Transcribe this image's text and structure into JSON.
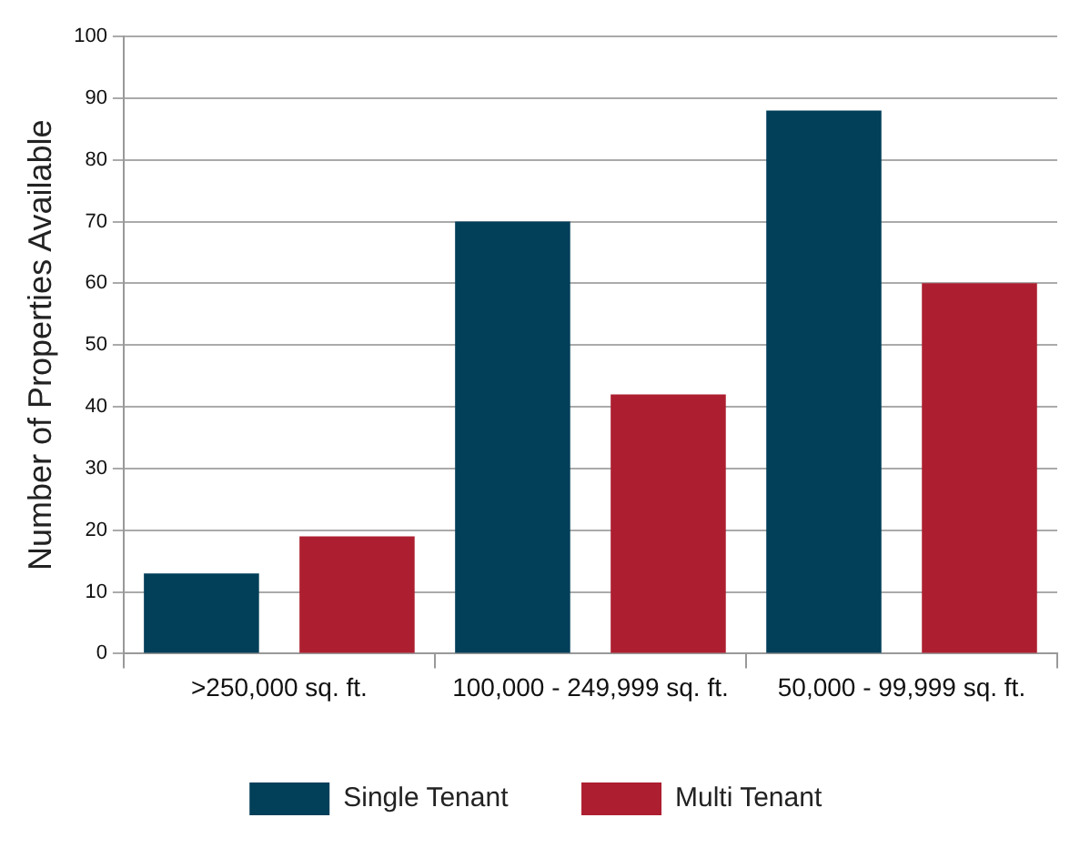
{
  "chart_data": {
    "type": "bar",
    "ylabel": "Number of Properties Available",
    "categories": [
      ">250,000 sq. ft.",
      "100,000 - 249,999 sq. ft.",
      "50,000 - 99,999 sq. ft."
    ],
    "series": [
      {
        "name": "Single Tenant",
        "color": "#023f59",
        "values": [
          13,
          70,
          88
        ]
      },
      {
        "name": "Multi Tenant",
        "color": "#ad1f30",
        "values": [
          19,
          42,
          60
        ]
      }
    ],
    "ylim": [
      0,
      100
    ],
    "yticks": [
      0,
      10,
      20,
      30,
      40,
      50,
      60,
      70,
      80,
      90,
      100
    ],
    "grid": "y",
    "legend": "bottom"
  }
}
